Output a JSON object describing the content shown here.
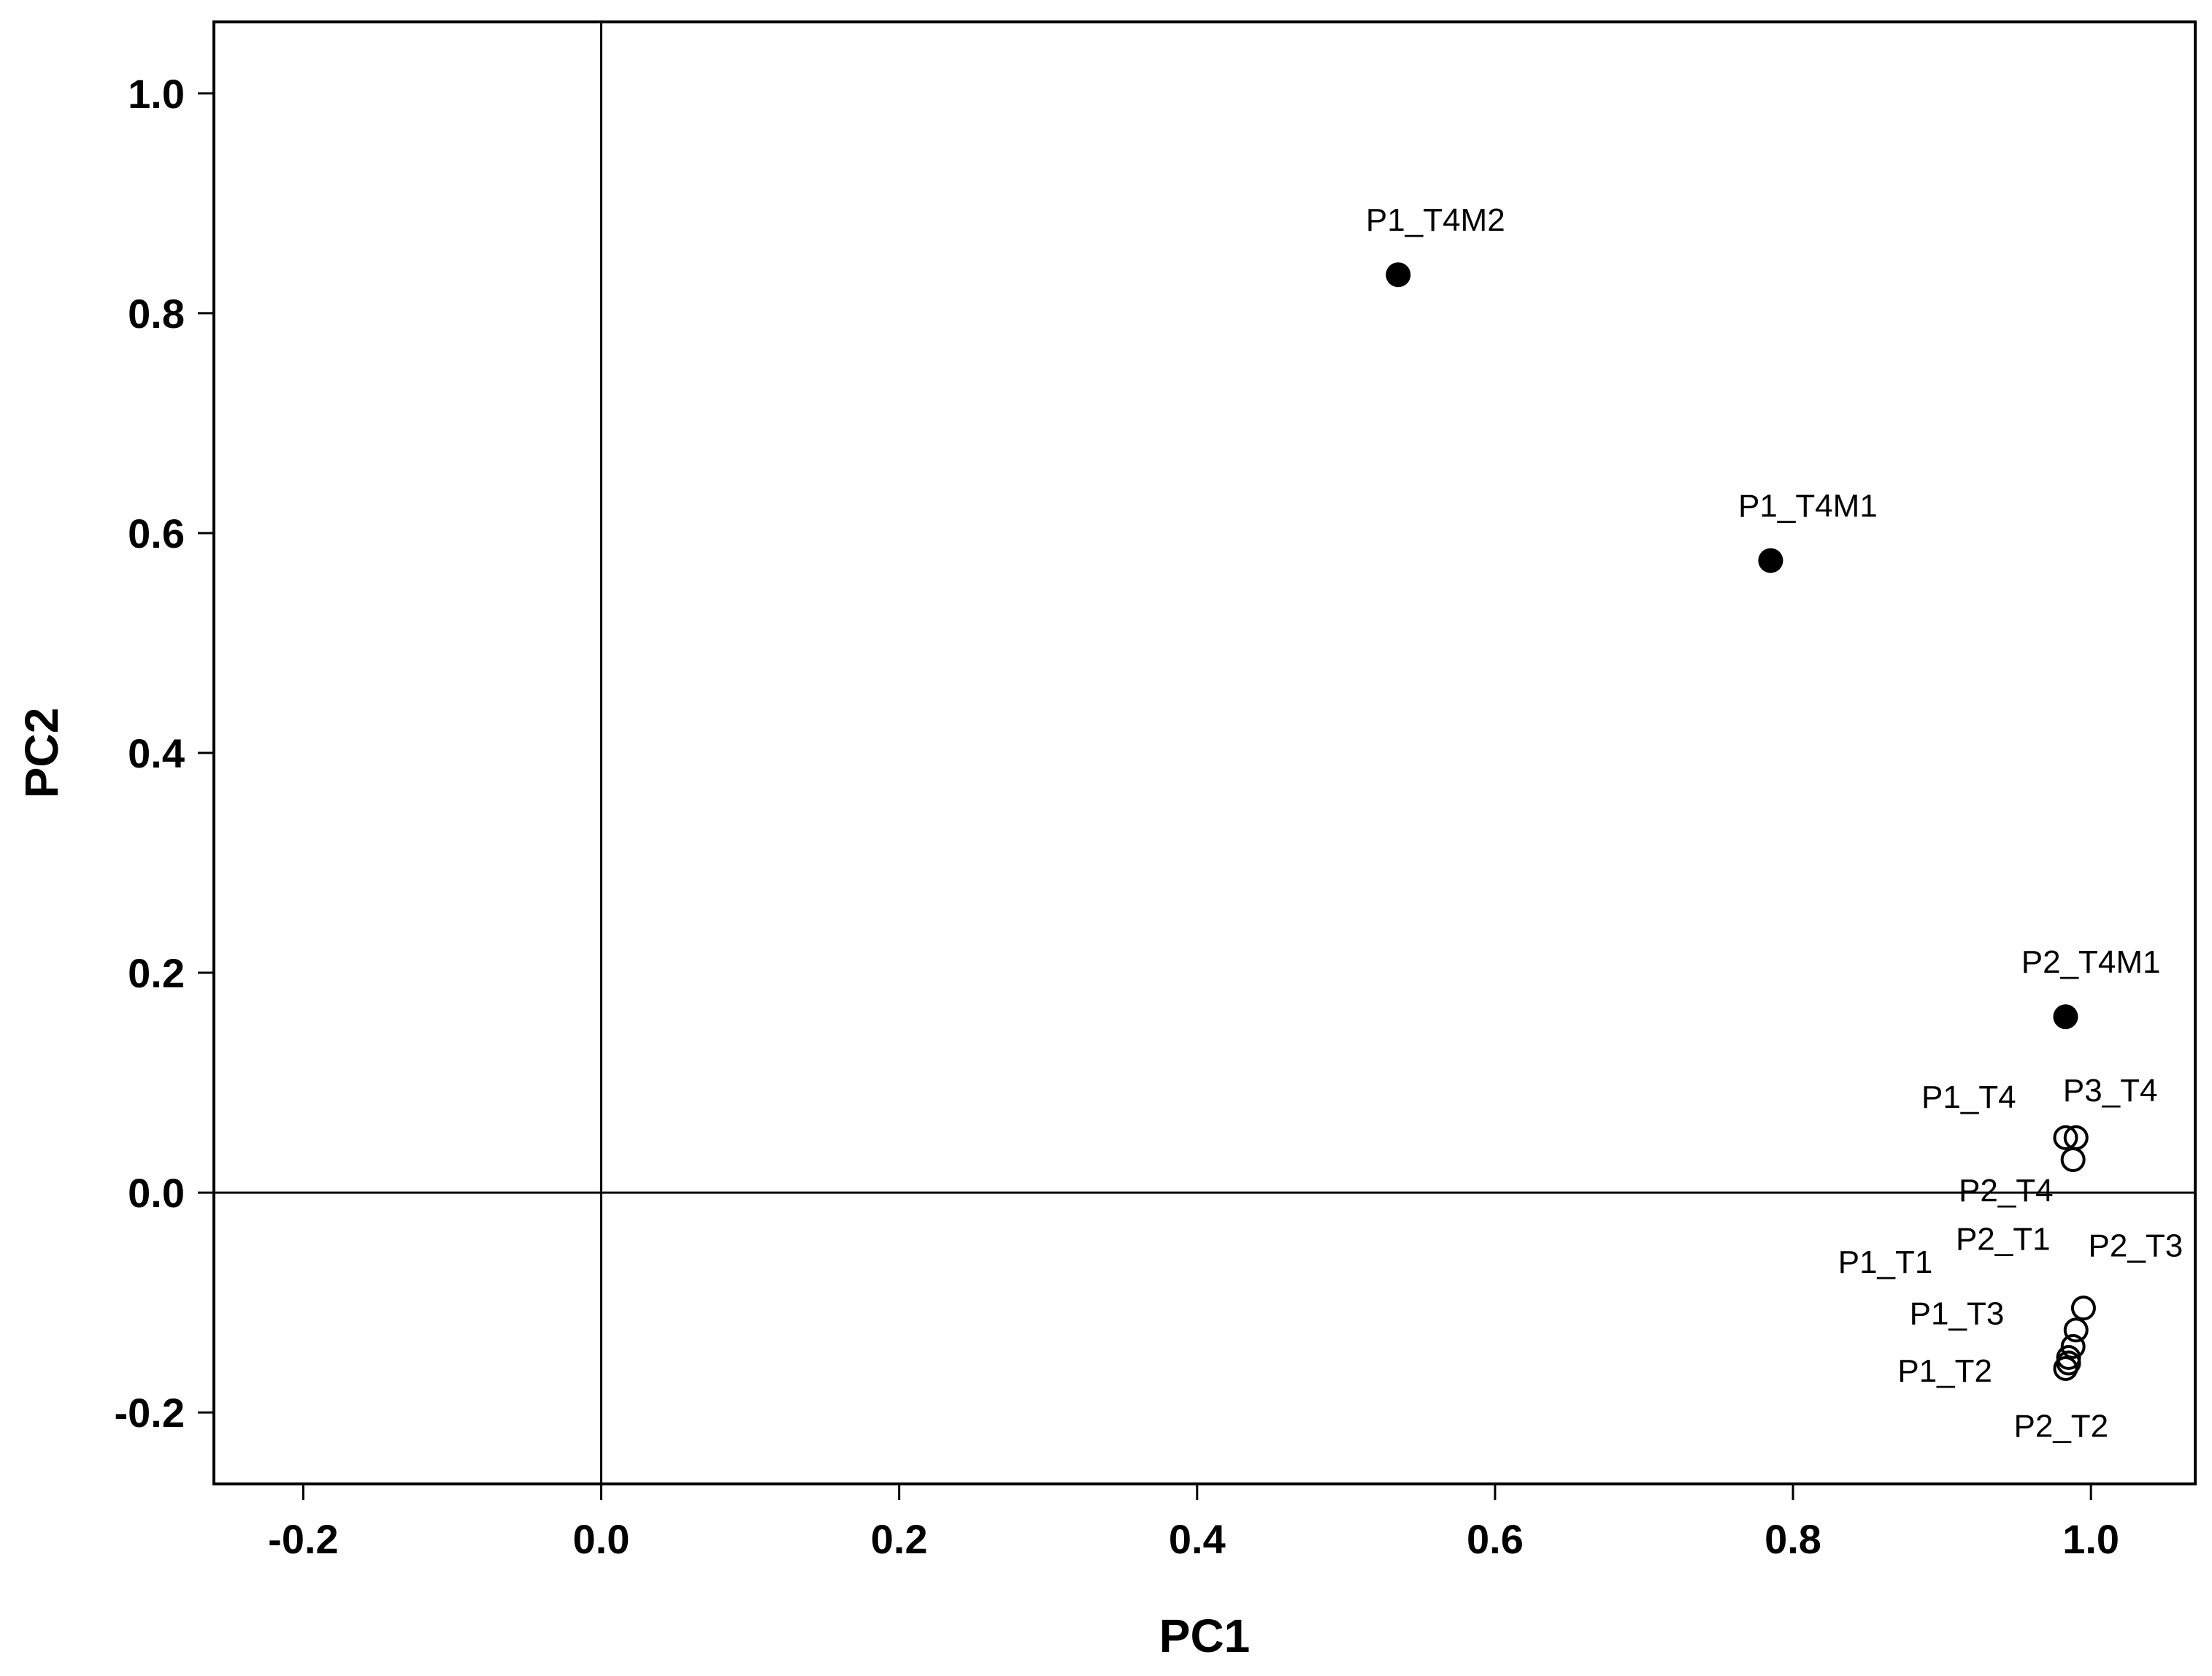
{
  "chart_data": {
    "type": "scatter",
    "xlabel": "PC1",
    "ylabel": "PC2",
    "xlim": [
      -0.26,
      1.07
    ],
    "ylim": [
      -0.265,
      1.065
    ],
    "xticks": [
      -0.2,
      0.0,
      0.2,
      0.4,
      0.6,
      0.8,
      1.0
    ],
    "yticks": [
      -0.2,
      0.0,
      0.2,
      0.4,
      0.6,
      0.8,
      1.0
    ],
    "xtick_labels": [
      "-0.2",
      "0.0",
      "0.2",
      "0.4",
      "0.6",
      "0.8",
      "1.0"
    ],
    "ytick_labels": [
      "-0.2",
      "0.0",
      "0.2",
      "0.4",
      "0.6",
      "0.8",
      "1.0"
    ],
    "reference_lines": {
      "x": 0.0,
      "y": 0.0
    },
    "grid": false,
    "legend": "none",
    "colors": {
      "marker": "#000000",
      "frame": "#000000",
      "background": "#ffffff"
    },
    "points": [
      {
        "label": "P1_T4M2",
        "x": 0.535,
        "y": 0.835,
        "filled": true,
        "label_x": 0.56,
        "label_y": 0.875
      },
      {
        "label": "P1_T4M1",
        "x": 0.785,
        "y": 0.575,
        "filled": true,
        "label_x": 0.81,
        "label_y": 0.615
      },
      {
        "label": "P2_T4M1",
        "x": 0.983,
        "y": 0.16,
        "filled": true,
        "label_x": 1.0,
        "label_y": 0.2
      },
      {
        "label": "P1_T4",
        "x": 0.983,
        "y": 0.05,
        "filled": false,
        "label_x": 0.918,
        "label_y": 0.077
      },
      {
        "label": "P3_T4",
        "x": 0.99,
        "y": 0.05,
        "filled": false,
        "label_x": 1.013,
        "label_y": 0.083
      },
      {
        "label": "P2_T4",
        "x": 0.988,
        "y": 0.03,
        "filled": false,
        "label_x": 0.943,
        "label_y": -0.008
      },
      {
        "label": "P2_T3",
        "x": 0.995,
        "y": -0.105,
        "filled": false,
        "label_x": 1.03,
        "label_y": -0.058
      },
      {
        "label": "P2_T1",
        "x": 0.99,
        "y": -0.125,
        "filled": false,
        "label_x": 0.941,
        "label_y": -0.052
      },
      {
        "label": "P1_T1",
        "x": 0.988,
        "y": -0.14,
        "filled": false,
        "label_x": 0.862,
        "label_y": -0.073
      },
      {
        "label": "P1_T3",
        "x": 0.985,
        "y": -0.15,
        "filled": false,
        "label_x": 0.91,
        "label_y": -0.12
      },
      {
        "label": "P1_T2",
        "x": 0.983,
        "y": -0.16,
        "filled": false,
        "label_x": 0.902,
        "label_y": -0.172
      },
      {
        "label": "P2_T2",
        "x": 0.985,
        "y": -0.155,
        "filled": false,
        "label_x": 0.98,
        "label_y": -0.222
      }
    ]
  }
}
